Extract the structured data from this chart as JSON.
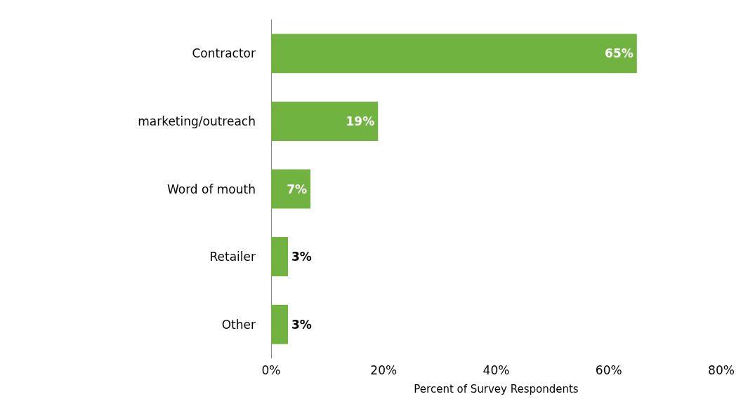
{
  "chart_data": {
    "type": "bar",
    "orientation": "horizontal",
    "xlabel": "Percent of Survey Respondents",
    "categories": [
      "Contractor",
      "marketing/outreach",
      "Word of mouth",
      "Retailer",
      "Other"
    ],
    "values": [
      65,
      19,
      7,
      3,
      3
    ],
    "color": "#70b340",
    "value_labels": [
      "65%",
      "19%",
      "7%",
      "3%",
      "3%"
    ],
    "xlim": [
      0,
      80
    ],
    "xticks": [
      {
        "value": 0,
        "label": "0%"
      },
      {
        "value": 20,
        "label": "20%"
      },
      {
        "value": 40,
        "label": "40%"
      },
      {
        "value": 60,
        "label": "60%"
      },
      {
        "value": 80,
        "label": "80%"
      }
    ]
  }
}
